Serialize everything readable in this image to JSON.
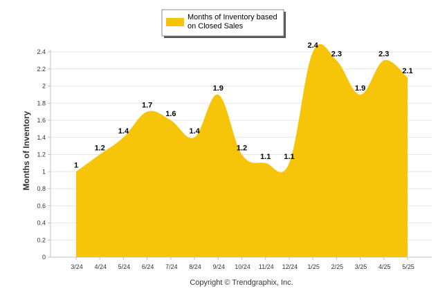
{
  "chart_data": {
    "type": "area",
    "categories": [
      "3/24",
      "4/24",
      "5/24",
      "6/24",
      "7/24",
      "8/24",
      "9/24",
      "10/24",
      "11/24",
      "12/24",
      "1/25",
      "2/25",
      "3/25",
      "4/25",
      "5/25"
    ],
    "series": [
      {
        "name": "Months of Inventory based on Closed Sales",
        "values": [
          1,
          1.2,
          1.4,
          1.7,
          1.6,
          1.4,
          1.9,
          1.2,
          1.1,
          1.1,
          2.4,
          2.3,
          1.9,
          2.3,
          2.1
        ],
        "data_labels": [
          "1",
          "1.2",
          "1.4",
          "1.7",
          "1.6",
          "1.4",
          "1.9",
          "1.2",
          "1.1",
          "1.1",
          "2.4",
          "2.3",
          "1.9",
          "2.3",
          "2.1"
        ],
        "color": "#F6C408"
      }
    ],
    "ylabel": "Months of Inventory",
    "xlabel": "",
    "ylim": [
      0,
      2.4
    ],
    "yticks": [
      "0",
      "0.2",
      "0.4",
      "0.6",
      "0.8",
      "1",
      "1.2",
      "1.4",
      "1.6",
      "1.8",
      "2",
      "2.2",
      "2.4"
    ],
    "grid": true,
    "legend_position": "top"
  },
  "legend": {
    "label_line1": "Months of Inventory based",
    "label_line2": "on Closed Sales"
  },
  "caption": "Copyright © Trendgraphix, Inc.",
  "colors": {
    "fill": "#F6C408",
    "grid": "#E6E6E6",
    "axis": "#C0C0C0"
  }
}
